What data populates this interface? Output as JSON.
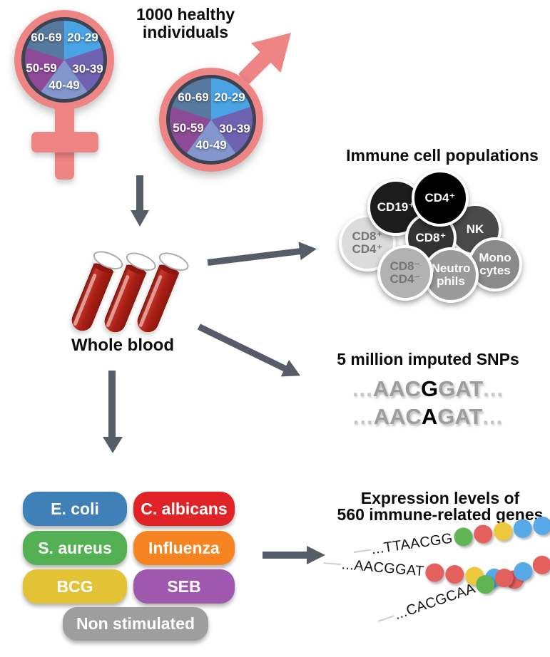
{
  "title": {
    "line1": "1000 healthy",
    "line2": "individuals"
  },
  "demographics": {
    "age_groups": [
      {
        "label": "20-29",
        "color": "#4aa3e4"
      },
      {
        "label": "30-39",
        "color": "#6f63b1"
      },
      {
        "label": "40-49",
        "color": "#8396cd"
      },
      {
        "label": "50-59",
        "color": "#8d4b97"
      },
      {
        "label": "60-69",
        "color": "#567a9f"
      }
    ],
    "symbol_color": "#ee8484",
    "ring_color": "#3c4454"
  },
  "whole_blood": {
    "label": "Whole blood"
  },
  "immune_cells": {
    "heading": "Immune cell populations",
    "cells": [
      {
        "id": "cd8pos-cd4pos",
        "lines": [
          "CD8⁺",
          "CD4⁺"
        ],
        "bg": "#dcdcdc",
        "text": "#757575"
      },
      {
        "id": "cd19pos",
        "lines": [
          "CD19⁺"
        ],
        "bg": "#1c1c1c",
        "text": "#ffffff"
      },
      {
        "id": "nk",
        "lines": [
          "NK"
        ],
        "bg": "#4a4a4a",
        "text": "#ffffff"
      },
      {
        "id": "monocytes",
        "lines": [
          "Mono",
          "cytes"
        ],
        "bg": "#8a8a8a",
        "text": "#ffffff"
      },
      {
        "id": "cd8pos",
        "lines": [
          "CD8⁺"
        ],
        "bg": "#333333",
        "text": "#ffffff"
      },
      {
        "id": "cd4pos",
        "lines": [
          "CD4⁺"
        ],
        "bg": "#000000",
        "text": "#ffffff"
      },
      {
        "id": "neutrophils",
        "lines": [
          "Neutro",
          "phils"
        ],
        "bg": "#9b9b9b",
        "text": "#ffffff"
      },
      {
        "id": "cd8neg-cd4neg",
        "lines": [
          "CD8⁻",
          "CD4⁻"
        ],
        "bg": "#b2b2b2",
        "text": "#757575"
      }
    ]
  },
  "snps": {
    "heading": "5 million imputed SNPs",
    "sequences": [
      {
        "prefix": "...",
        "before": "AAC",
        "variant": "G",
        "after": "GAT",
        "suffix": "..."
      },
      {
        "prefix": "...",
        "before": "AAC",
        "variant": "A",
        "after": "GAT",
        "suffix": "..."
      }
    ]
  },
  "stimulations": {
    "items": [
      {
        "label": "E. coli",
        "color": "#4080b8"
      },
      {
        "label": "C. albicans",
        "color": "#e02327"
      },
      {
        "label": "S. aureus",
        "color": "#53b153"
      },
      {
        "label": "Influenza",
        "color": "#f68420"
      },
      {
        "label": "BCG",
        "color": "#e3c236"
      },
      {
        "label": "SEB",
        "color": "#9f58ae"
      },
      {
        "label": "Non stimulated",
        "color": "#9e9e9e"
      }
    ]
  },
  "expression": {
    "heading_line1": "Expression levels of",
    "heading_line2": "560 immune-related genes",
    "dot_colors": {
      "green": "#5fb454",
      "red": "#e4605c",
      "yellow": "#ecc83d",
      "blue": "#57a9e8"
    },
    "genes": [
      {
        "sequence": "...TTAACGG",
        "dots": [
          "green",
          "red",
          "yellow",
          "blue",
          "blue"
        ]
      },
      {
        "sequence": "...AACGGAT",
        "dots": [
          "red",
          "red",
          "yellow",
          "blue",
          "red"
        ]
      },
      {
        "sequence": "...CACGCAA",
        "dots": [
          "green",
          "red",
          "blue",
          "red",
          "red"
        ]
      }
    ]
  }
}
